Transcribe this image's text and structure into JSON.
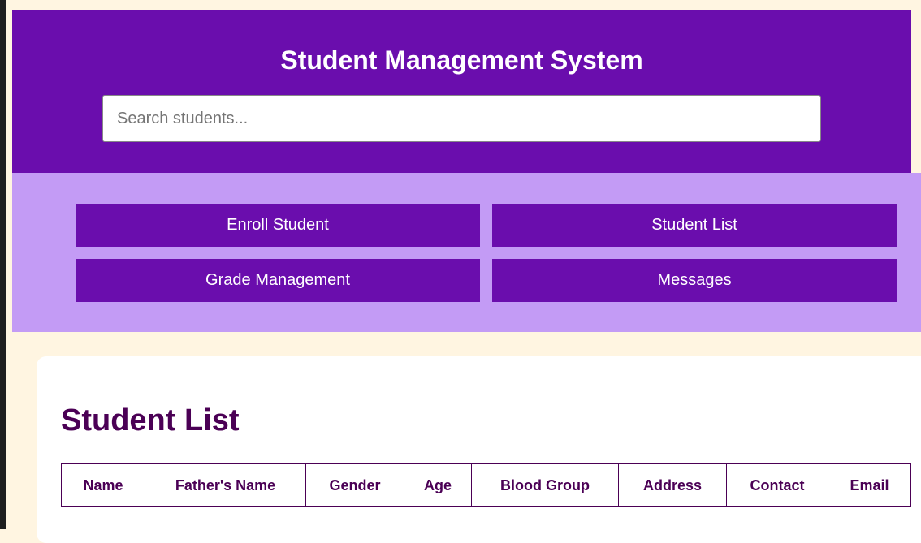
{
  "header": {
    "title": "Student Management System",
    "search_placeholder": "Search students..."
  },
  "nav": {
    "buttons": [
      "Enroll Student",
      "Student List",
      "Grade Management",
      "Messages"
    ]
  },
  "main": {
    "heading": "Student List",
    "columns": [
      "Name",
      "Father's Name",
      "Gender",
      "Age",
      "Blood Group",
      "Address",
      "Contact",
      "Email"
    ]
  },
  "colors": {
    "primary": "#6a0dad",
    "nav_bg": "#c39bf5",
    "page_bg": "#fff5e1",
    "heading": "#4b0055"
  }
}
